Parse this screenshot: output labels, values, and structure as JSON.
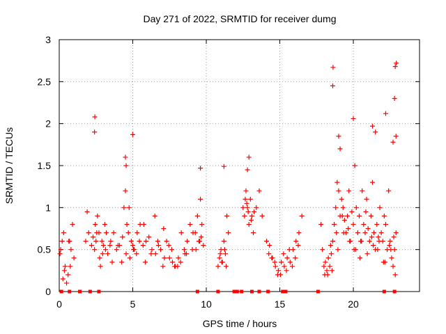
{
  "chart_data": {
    "type": "scatter",
    "title": "Day 271 of 2022, SRMTID for receiver dumg",
    "xlabel": "GPS time / hours",
    "ylabel": "SRMTID / TECUs",
    "xlim": [
      0,
      24.5
    ],
    "ylim": [
      0,
      3
    ],
    "x_ticks": [
      0,
      5,
      10,
      15,
      20
    ],
    "x_tick_labels": [
      "0",
      "5",
      "10",
      "15",
      "20"
    ],
    "y_ticks": [
      0,
      0.5,
      1,
      1.5,
      2,
      2.5,
      3
    ],
    "y_tick_labels": [
      "0",
      "0.5",
      "1",
      "1.5",
      "2",
      "2.5",
      "3"
    ],
    "grid": true,
    "marker": "plus",
    "series": [
      {
        "name": "SRMTID",
        "color": "#ff0000",
        "x": [
          0.1,
          0.2,
          0.3,
          0.4,
          0.5,
          0.6,
          0.7,
          0.8,
          0.9,
          1.0,
          1.8,
          1.9,
          2.0,
          2.2,
          2.4,
          2.45,
          2.5,
          2.6,
          2.7,
          2.8,
          2.9,
          3.0,
          3.1,
          3.2,
          3.3,
          3.5,
          3.7,
          3.9,
          4.1,
          4.3,
          4.4,
          4.5,
          4.6,
          4.7,
          4.8,
          4.9,
          5.0,
          5.1,
          5.3,
          5.5,
          5.7,
          5.9,
          6.1,
          6.3,
          6.5,
          6.7,
          6.9,
          7.1,
          7.3,
          7.5,
          7.7,
          7.9,
          8.1,
          8.3,
          8.5,
          8.7,
          8.9,
          9.1,
          9.3,
          9.4,
          9.5,
          9.6,
          9.7,
          9.8,
          10.8,
          10.9,
          11.0,
          11.1,
          11.2,
          11.3,
          11.4,
          11.5,
          12.5,
          12.6,
          12.7,
          12.8,
          12.9,
          13.0,
          13.1,
          13.2,
          13.4,
          13.6,
          13.8,
          14.1,
          14.3,
          14.5,
          14.7,
          14.9,
          15.1,
          15.3,
          15.5,
          15.7,
          15.9,
          16.1,
          16.3,
          16.5,
          17.8,
          17.9,
          18.0,
          18.1,
          18.2,
          18.3,
          18.4,
          18.5,
          18.6,
          18.7,
          18.8,
          18.9,
          19.0,
          19.1,
          19.2,
          19.3,
          19.4,
          19.5,
          19.6,
          19.7,
          19.8,
          19.9,
          20.0,
          20.1,
          20.2,
          20.3,
          20.4,
          20.5,
          20.6,
          20.7,
          20.8,
          20.9,
          21.0,
          21.1,
          21.2,
          21.3,
          21.4,
          21.5,
          21.6,
          21.7,
          21.8,
          21.9,
          22.0,
          22.1,
          22.2,
          22.3,
          22.4,
          22.5,
          22.6,
          22.7,
          22.8,
          22.9,
          0.05,
          0.35,
          0.65,
          2.3,
          2.75,
          3.15,
          3.6,
          4.0,
          4.55,
          5.05,
          5.45,
          5.85,
          6.25,
          6.75,
          7.15,
          7.65,
          8.05,
          8.55,
          9.05,
          9.55,
          11.05,
          11.25,
          12.65,
          12.85,
          13.05,
          14.25,
          14.65,
          15.05,
          15.45,
          15.85,
          16.25,
          18.25,
          18.55,
          18.95,
          19.35,
          19.75,
          20.15,
          20.55,
          20.95,
          21.35,
          21.75,
          22.15,
          22.55,
          22.85,
          0.25,
          0.75,
          2.55,
          2.95,
          3.45,
          4.25,
          4.75,
          5.25,
          5.75,
          6.55,
          7.05,
          7.45,
          7.85,
          8.25,
          8.65,
          9.25,
          9.65,
          10.95,
          11.35,
          12.75,
          13.25,
          14.45,
          14.85,
          15.25,
          15.65,
          16.05,
          18.05,
          18.45,
          18.85,
          19.25,
          19.65,
          20.05,
          20.45,
          20.85,
          21.25,
          21.65,
          22.05,
          22.45,
          22.75,
          2.4,
          2.42,
          4.5,
          4.55,
          5.0,
          9.6,
          11.2,
          12.8,
          12.9,
          18.6,
          18.62,
          19.0,
          19.1,
          20.0,
          21.3,
          21.5,
          22.2,
          22.7,
          22.8,
          22.85,
          22.9,
          22.92
        ],
        "y": [
          0.5,
          0.6,
          0.7,
          0.3,
          0.1,
          0.2,
          0.6,
          0.5,
          0.8,
          0.4,
          0.6,
          0.95,
          0.7,
          0.55,
          0.5,
          0.8,
          0.6,
          0.9,
          0.7,
          0.3,
          0.6,
          0.55,
          0.8,
          0.7,
          0.45,
          0.6,
          0.7,
          0.5,
          0.55,
          0.65,
          1.0,
          1.2,
          0.8,
          0.7,
          0.4,
          0.6,
          0.55,
          0.5,
          0.7,
          0.8,
          0.55,
          0.6,
          0.65,
          0.5,
          0.9,
          0.6,
          0.5,
          0.75,
          0.6,
          0.4,
          0.35,
          0.3,
          0.4,
          0.7,
          0.5,
          0.6,
          0.8,
          0.7,
          0.5,
          0.9,
          0.6,
          1.1,
          0.8,
          0.55,
          0.3,
          0.4,
          0.5,
          0.35,
          0.6,
          0.45,
          0.9,
          0.7,
          1.0,
          0.9,
          1.2,
          1.0,
          0.8,
          1.1,
          0.9,
          0.7,
          1.0,
          1.2,
          0.9,
          0.6,
          0.55,
          0.4,
          0.3,
          0.25,
          0.35,
          0.3,
          0.4,
          0.35,
          0.5,
          0.6,
          0.7,
          0.9,
          0.8,
          0.5,
          0.3,
          0.35,
          0.25,
          0.4,
          0.3,
          0.45,
          0.6,
          0.8,
          1.0,
          1.3,
          1.2,
          0.9,
          1.1,
          1.0,
          0.85,
          0.7,
          0.9,
          1.2,
          0.6,
          0.95,
          0.8,
          1.5,
          1.0,
          0.7,
          0.9,
          0.6,
          1.2,
          0.8,
          0.7,
          1.1,
          0.75,
          0.6,
          0.9,
          1.3,
          0.7,
          0.5,
          0.8,
          0.65,
          1.0,
          0.7,
          0.6,
          0.9,
          0.8,
          0.5,
          1.2,
          0.6,
          0.4,
          0.3,
          0.5,
          0.7,
          0.45,
          0.25,
          0.6,
          0.65,
          0.4,
          0.5,
          0.35,
          0.55,
          0.45,
          0.5,
          0.6,
          0.35,
          0.45,
          0.55,
          0.4,
          0.5,
          0.3,
          0.45,
          0.5,
          0.6,
          0.35,
          0.5,
          1.1,
          0.95,
          0.85,
          0.45,
          0.35,
          0.2,
          0.25,
          0.3,
          0.55,
          0.2,
          0.25,
          0.5,
          0.7,
          0.6,
          0.5,
          0.6,
          0.45,
          0.55,
          0.6,
          0.35,
          0.5,
          0.2,
          0.15,
          0.3,
          0.7,
          0.45,
          0.55,
          0.35,
          1.0,
          0.45,
          0.8,
          0.45,
          0.3,
          0.55,
          0.3,
          0.35,
          0.45,
          0.7,
          0.65,
          0.45,
          0.3,
          1.05,
          0.95,
          0.4,
          0.2,
          0.45,
          0.5,
          0.4,
          0.2,
          0.55,
          0.7,
          0.9,
          0.75,
          0.5,
          0.4,
          0.95,
          0.65,
          0.5,
          0.35,
          0.55,
          0.65,
          1.9,
          2.08,
          1.6,
          1.5,
          1.87,
          1.47,
          1.49,
          1.45,
          1.6,
          2.45,
          2.67,
          1.85,
          1.7,
          2.06,
          1.97,
          1.9,
          2.12,
          1.78,
          2.3,
          2.68,
          1.85,
          2.72
        ]
      }
    ],
    "zero_markers_x": [
      0.15,
      0.7,
      1.4,
      2.1,
      2.7,
      9.4,
      10.8,
      11.9,
      12.1,
      12.4,
      13.1,
      13.6,
      14.2,
      15.2,
      15.4,
      17.6,
      22.1,
      22.8
    ]
  }
}
